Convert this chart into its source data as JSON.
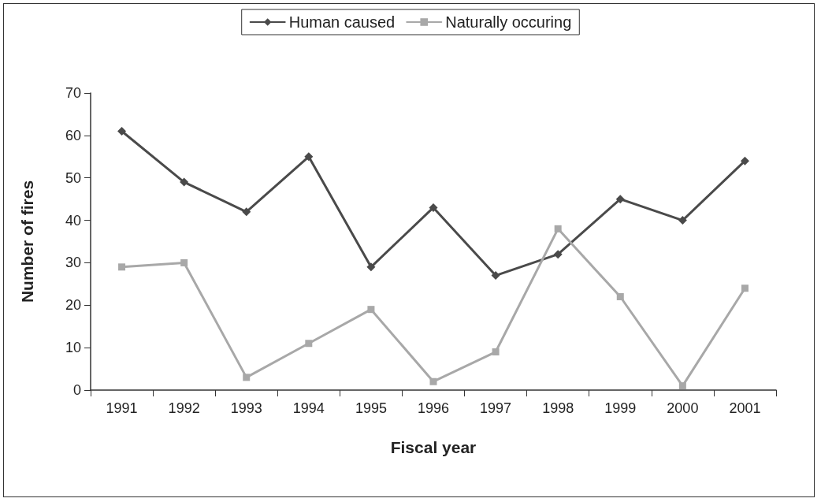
{
  "chart_data": {
    "type": "line",
    "xlabel": "Fiscal year",
    "ylabel": "Number of fires",
    "categories": [
      "1991",
      "1992",
      "1993",
      "1994",
      "1995",
      "1996",
      "1997",
      "1998",
      "1999",
      "2000",
      "2001"
    ],
    "series": [
      {
        "name": "Human caused",
        "color": "#4a4a4a",
        "marker": "diamond",
        "values": [
          61,
          49,
          42,
          55,
          29,
          43,
          27,
          32,
          45,
          40,
          54
        ]
      },
      {
        "name": "Naturally occuring",
        "color": "#a8a8a8",
        "marker": "square",
        "values": [
          29,
          30,
          3,
          11,
          19,
          2,
          9,
          38,
          22,
          1,
          24
        ]
      }
    ],
    "ylim": [
      0,
      70
    ],
    "yticks": [
      0,
      10,
      20,
      30,
      40,
      50,
      60,
      70
    ],
    "grid": false,
    "legend": "top",
    "line_style": "solid"
  }
}
